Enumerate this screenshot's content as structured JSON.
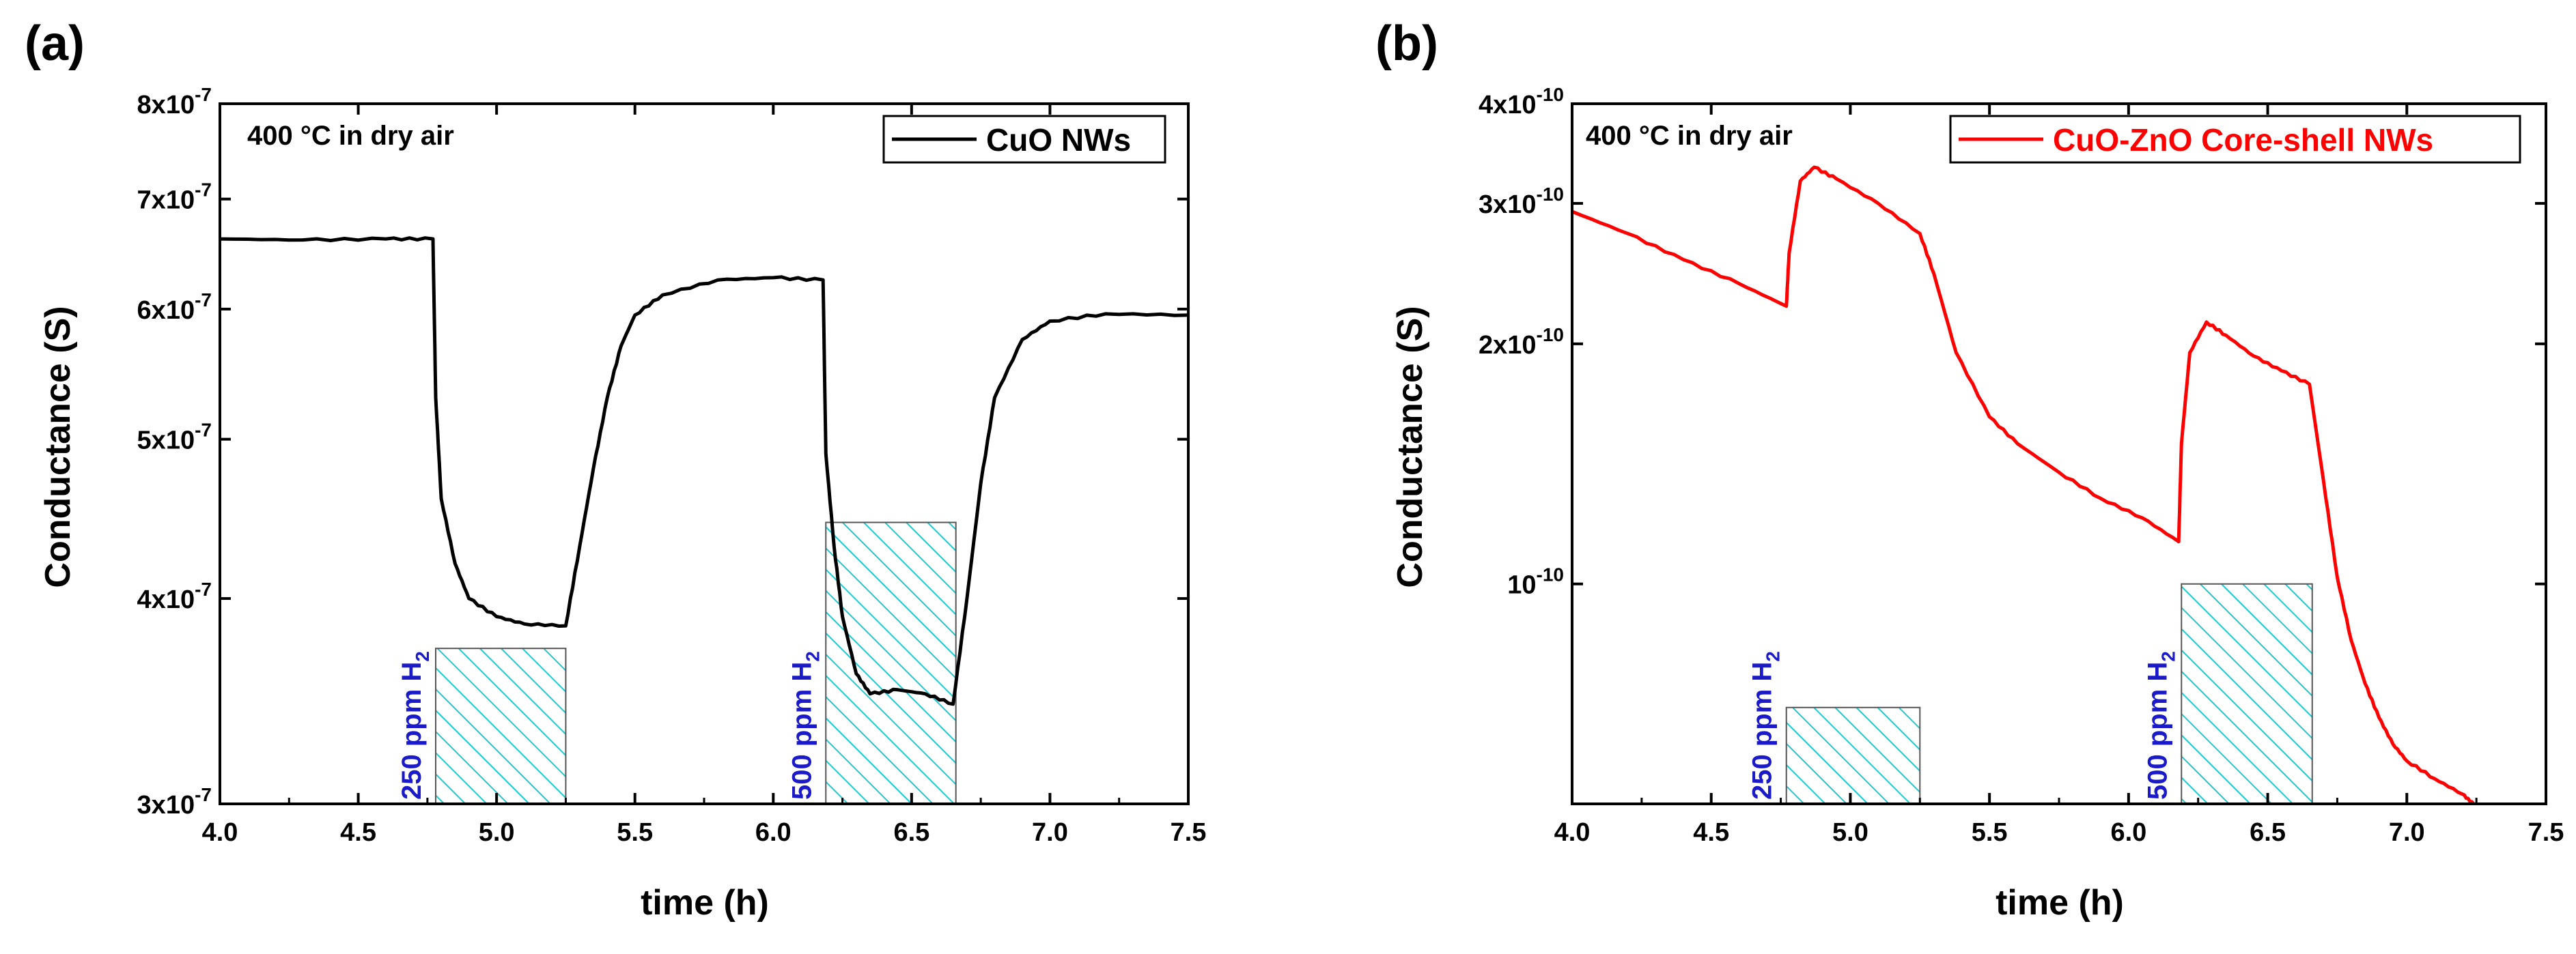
{
  "chart_data": [
    {
      "panel": "(a)",
      "type": "line",
      "yscale": "log",
      "xlabel": "time (h)",
      "ylabel": "Conductance (S)",
      "xlim": [
        4.0,
        7.5
      ],
      "ylim": [
        3e-07,
        8e-07
      ],
      "x_ticks": [
        "4.0",
        "4.5",
        "5.0",
        "5.5",
        "6.0",
        "6.5",
        "7.0",
        "7.5"
      ],
      "y_ticks": [
        {
          "value": 3e-07,
          "mantissa": "3x10",
          "exp": "-7"
        },
        {
          "value": 4e-07,
          "mantissa": "4x10",
          "exp": "-7"
        },
        {
          "value": 5e-07,
          "mantissa": "5x10",
          "exp": "-7"
        },
        {
          "value": 6e-07,
          "mantissa": "6x10",
          "exp": "-7"
        },
        {
          "value": 7e-07,
          "mantissa": "7x10",
          "exp": "-7"
        },
        {
          "value": 8e-07,
          "mantissa": "8x10",
          "exp": "-7"
        }
      ],
      "annotation": "400 °C in dry air",
      "legend": {
        "label": "CuO NWs",
        "color": "#000000",
        "position": "top-right"
      },
      "series": [
        {
          "name": "CuO NWs",
          "color": "#000000",
          "points": [
            [
              4.0,
              6.62e-07
            ],
            [
              4.3,
              6.61e-07
            ],
            [
              4.6,
              6.62e-07
            ],
            [
              4.77,
              6.62e-07
            ],
            [
              4.78,
              5.3e-07
            ],
            [
              4.8,
              4.6e-07
            ],
            [
              4.85,
              4.2e-07
            ],
            [
              4.9,
              4e-07
            ],
            [
              5.0,
              3.9e-07
            ],
            [
              5.1,
              3.86e-07
            ],
            [
              5.25,
              3.85e-07
            ],
            [
              5.3,
              4.3e-07
            ],
            [
              5.35,
              4.8e-07
            ],
            [
              5.4,
              5.3e-07
            ],
            [
              5.45,
              5.7e-07
            ],
            [
              5.5,
              5.95e-07
            ],
            [
              5.6,
              6.12e-07
            ],
            [
              5.8,
              6.25e-07
            ],
            [
              6.0,
              6.27e-07
            ],
            [
              6.18,
              6.25e-07
            ],
            [
              6.19,
              4.9e-07
            ],
            [
              6.22,
              4.3e-07
            ],
            [
              6.25,
              3.9e-07
            ],
            [
              6.3,
              3.6e-07
            ],
            [
              6.35,
              3.5e-07
            ],
            [
              6.45,
              3.52e-07
            ],
            [
              6.55,
              3.5e-07
            ],
            [
              6.65,
              3.45e-07
            ],
            [
              6.7,
              4e-07
            ],
            [
              6.75,
              4.7e-07
            ],
            [
              6.8,
              5.3e-07
            ],
            [
              6.9,
              5.75e-07
            ],
            [
              7.0,
              5.9e-07
            ],
            [
              7.2,
              5.96e-07
            ],
            [
              7.5,
              5.95e-07
            ]
          ]
        }
      ],
      "bars": [
        {
          "label_main": "250 ppm H",
          "label_sub": "2",
          "x0": 4.78,
          "x1": 5.25,
          "top": 3.73e-07
        },
        {
          "label_main": "500 ppm H",
          "label_sub": "2",
          "x0": 6.19,
          "x1": 6.66,
          "top": 4.45e-07
        }
      ]
    },
    {
      "panel": "(b)",
      "type": "line",
      "yscale": "log",
      "xlabel": "time (h)",
      "ylabel": "Conductance (S)",
      "xlim": [
        4.0,
        7.5
      ],
      "ylim": [
        5.3e-11,
        4e-10
      ],
      "x_ticks": [
        "4.0",
        "4.5",
        "5.0",
        "5.5",
        "6.0",
        "6.5",
        "7.0",
        "7.5"
      ],
      "y_ticks": [
        {
          "value": 1e-10,
          "mantissa": "10",
          "exp": "-10"
        },
        {
          "value": 2e-10,
          "mantissa": "2x10",
          "exp": "-10"
        },
        {
          "value": 3e-10,
          "mantissa": "3x10",
          "exp": "-10"
        },
        {
          "value": 4e-10,
          "mantissa": "4x10",
          "exp": "-10"
        }
      ],
      "annotation": "400 °C in dry air",
      "legend": {
        "label": "CuO-ZnO Core-shell NWs",
        "color": "#ff0000",
        "position": "top-right"
      },
      "series": [
        {
          "name": "CuO-ZnO Core-shell NWs",
          "color": "#ff0000",
          "points": [
            [
              4.0,
              2.93e-10
            ],
            [
              4.2,
              2.75e-10
            ],
            [
              4.4,
              2.55e-10
            ],
            [
              4.6,
              2.38e-10
            ],
            [
              4.77,
              2.23e-10
            ],
            [
              4.78,
              2.6e-10
            ],
            [
              4.82,
              3.2e-10
            ],
            [
              4.87,
              3.33e-10
            ],
            [
              4.95,
              3.22e-10
            ],
            [
              5.1,
              3e-10
            ],
            [
              5.25,
              2.75e-10
            ],
            [
              5.3,
              2.45e-10
            ],
            [
              5.38,
              1.95e-10
            ],
            [
              5.5,
              1.62e-10
            ],
            [
              5.6,
              1.5e-10
            ],
            [
              5.75,
              1.38e-10
            ],
            [
              5.9,
              1.28e-10
            ],
            [
              6.05,
              1.21e-10
            ],
            [
              6.18,
              1.13e-10
            ],
            [
              6.19,
              1.5e-10
            ],
            [
              6.22,
              1.95e-10
            ],
            [
              6.28,
              2.13e-10
            ],
            [
              6.35,
              2.05e-10
            ],
            [
              6.45,
              1.93e-10
            ],
            [
              6.55,
              1.85e-10
            ],
            [
              6.65,
              1.78e-10
            ],
            [
              6.7,
              1.35e-10
            ],
            [
              6.75,
              1.02e-10
            ],
            [
              6.8,
              8.5e-11
            ],
            [
              6.85,
              7.5e-11
            ],
            [
              6.9,
              6.8e-11
            ],
            [
              6.95,
              6.3e-11
            ],
            [
              7.0,
              6e-11
            ],
            [
              7.1,
              5.7e-11
            ],
            [
              7.2,
              5.45e-11
            ],
            [
              7.24,
              5.3e-11
            ]
          ]
        }
      ],
      "bars": [
        {
          "label_main": "250 ppm H",
          "label_sub": "2",
          "x0": 4.77,
          "x1": 5.25,
          "top": 7e-11
        },
        {
          "label_main": "500 ppm H",
          "label_sub": "2",
          "x0": 6.19,
          "x1": 6.66,
          "top": 1e-10
        }
      ]
    }
  ],
  "colors": {
    "bar_stroke": "#1ec8d2",
    "bar_label": "#1a1ac8",
    "series_a": "#000000",
    "series_b": "#ff0000"
  }
}
